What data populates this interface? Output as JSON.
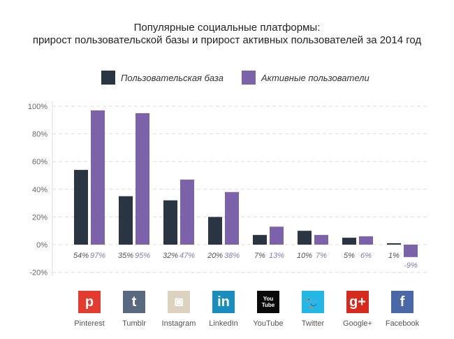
{
  "chart_data": {
    "type": "bar",
    "title": "Популярные социальные платформы:",
    "subtitle": "прирост пользовательской базы и прирост активных пользователей за 2014 год",
    "categories": [
      "Pinterest",
      "Tumblr",
      "Instagram",
      "LinkedIn",
      "YouTube",
      "Twitter",
      "Google+",
      "Facebook"
    ],
    "series": [
      {
        "name": "Пользовательская база",
        "color": "#2a3544",
        "values": [
          54,
          35,
          32,
          20,
          7,
          10,
          5,
          1
        ],
        "labels": [
          "54%",
          "35%",
          "32%",
          "20%",
          "7%",
          "10%",
          "5%",
          "1%"
        ]
      },
      {
        "name": "Активные пользователи",
        "color": "#7b62a9",
        "values": [
          97,
          95,
          47,
          38,
          13,
          7,
          6,
          -9
        ],
        "labels": [
          "97%",
          "95%",
          "47%",
          "38%",
          "13%",
          "7%",
          "6%",
          "-9%"
        ]
      }
    ],
    "yticks": [
      "100%",
      "80%",
      "60%",
      "40%",
      "20%",
      "0%",
      "-20%"
    ],
    "ytick_values": [
      100,
      80,
      60,
      40,
      20,
      0,
      -20
    ],
    "ylim": [
      -20,
      100
    ],
    "grid": true,
    "legend": "top"
  },
  "icons": [
    {
      "name": "pinterest-icon",
      "glyph": "p",
      "color": "#e33b2d"
    },
    {
      "name": "tumblr-icon",
      "glyph": "t",
      "color": "#596a80"
    },
    {
      "name": "instagram-icon",
      "glyph": "◙",
      "color": "#ddd2bf"
    },
    {
      "name": "linkedin-icon",
      "glyph": "in",
      "color": "#1a8dbf"
    },
    {
      "name": "youtube-icon",
      "glyph": "You Tube",
      "color": "#0a0a0a"
    },
    {
      "name": "twitter-icon",
      "glyph": "🐦",
      "color": "#22b8e6"
    },
    {
      "name": "google-plus-icon",
      "glyph": "g+",
      "color": "#d72a1c"
    },
    {
      "name": "facebook-icon",
      "glyph": "f",
      "color": "#4a67a8"
    }
  ]
}
